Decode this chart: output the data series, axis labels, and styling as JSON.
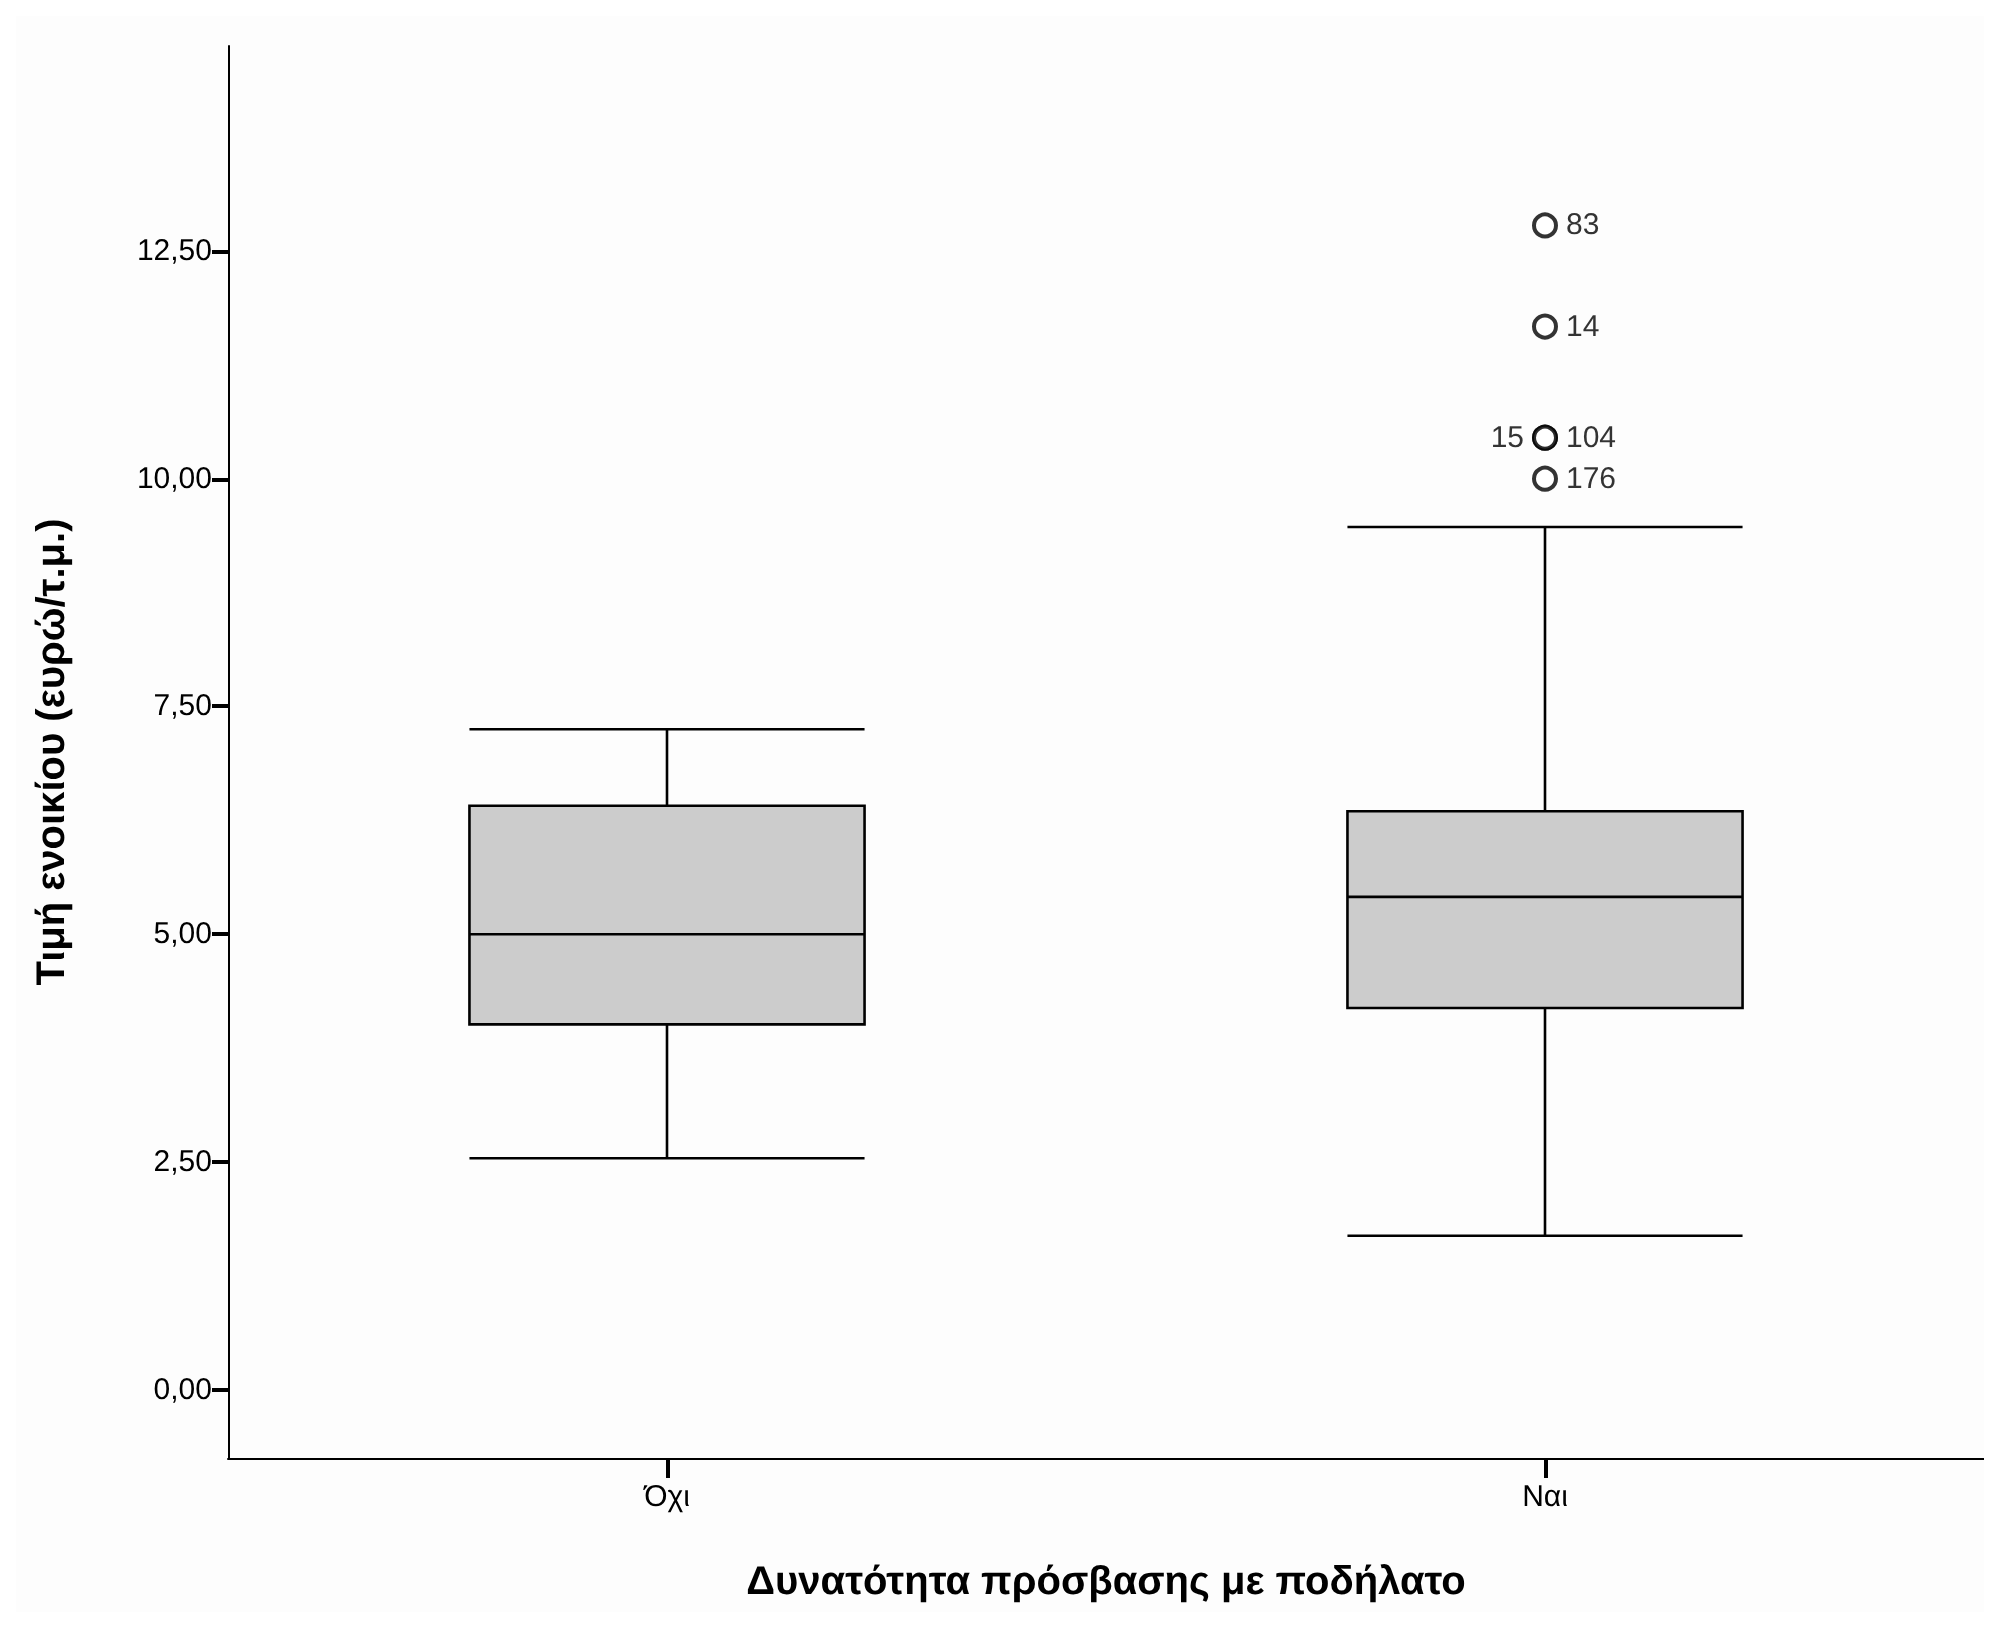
{
  "chart_data": {
    "type": "box",
    "xlabel": "Δυνατότητα πρόσβασης με ποδήλατο",
    "ylabel": "Τιμή ενοικίου (ευρώ/τ.μ.)",
    "categories": [
      "Όχι",
      "Ναι"
    ],
    "color": "#cccccc",
    "boxes": [
      {
        "low": 2.54,
        "q1": 4.01,
        "median": 5.0,
        "q3": 6.41,
        "high": 7.25
      },
      {
        "low": 1.69,
        "q1": 4.19,
        "median": 5.41,
        "q3": 6.35,
        "high": 9.47,
        "outliers": [
          12.78,
          11.67,
          10.45,
          10.45,
          10.0
        ]
      }
    ],
    "ylim": [
      -0.75,
      14.75
    ],
    "yticks": [
      {
        "value": 0,
        "label": "0,00"
      },
      {
        "value": 2.5,
        "label": "2,50"
      },
      {
        "value": 5,
        "label": "5,00"
      },
      {
        "value": 7.5,
        "label": "7,50"
      },
      {
        "value": 10,
        "label": "10,00"
      },
      {
        "value": 12.5,
        "label": "12,50"
      }
    ],
    "grid": false,
    "marker": "circle",
    "annotations": [
      "83",
      "14",
      "15",
      "104",
      "176"
    ]
  }
}
